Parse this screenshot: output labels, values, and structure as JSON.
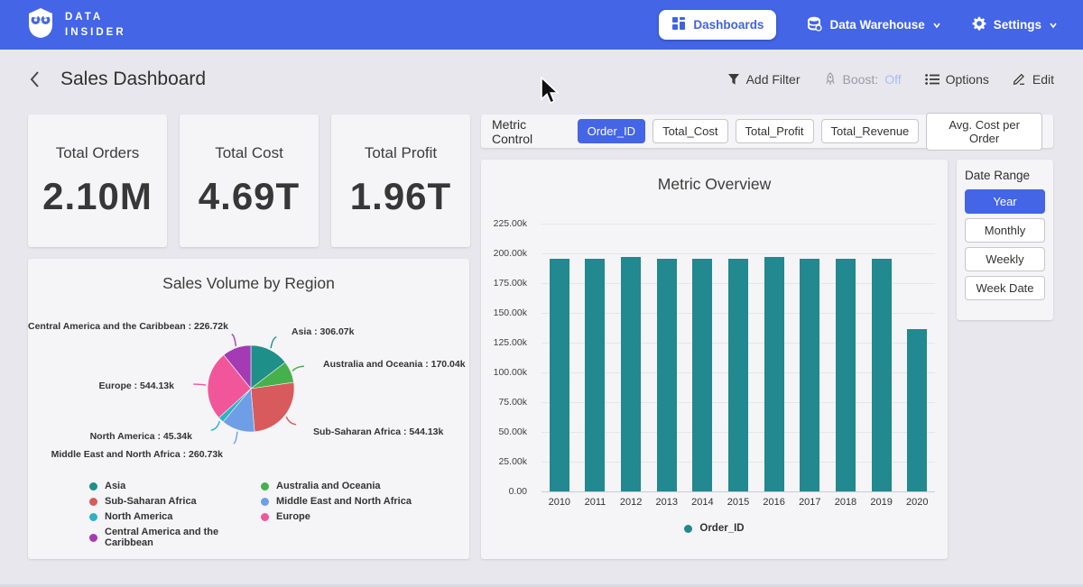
{
  "nav": {
    "brand_line1": "DATA",
    "brand_line2": "INSIDER",
    "items": [
      {
        "label": "Dashboards",
        "icon": "dashboard-grid-icon",
        "active": true
      },
      {
        "label": "Data Warehouse",
        "icon": "database-icon",
        "has_dropdown": true
      },
      {
        "label": "Settings",
        "icon": "gear-icon",
        "has_dropdown": true
      }
    ]
  },
  "header": {
    "title": "Sales Dashboard",
    "actions": {
      "add_filter": "Add Filter",
      "boost_label": "Boost:",
      "boost_value": "Off",
      "options": "Options",
      "edit": "Edit"
    }
  },
  "kpis": [
    {
      "label": "Total Orders",
      "value": "2.10M"
    },
    {
      "label": "Total Cost",
      "value": "4.69T"
    },
    {
      "label": "Total Profit",
      "value": "1.96T"
    }
  ],
  "metric_control": {
    "label": "Metric Control",
    "options": [
      {
        "label": "Order_ID",
        "selected": true
      },
      {
        "label": "Total_Cost",
        "selected": false
      },
      {
        "label": "Total_Profit",
        "selected": false
      },
      {
        "label": "Total_Revenue",
        "selected": false
      },
      {
        "label": "Avg. Cost per Order",
        "selected": false
      }
    ]
  },
  "date_range": {
    "label": "Date Range",
    "options": [
      {
        "label": "Year",
        "selected": true
      },
      {
        "label": "Monthly",
        "selected": false
      },
      {
        "label": "Weekly",
        "selected": false
      },
      {
        "label": "Week Date",
        "selected": false
      }
    ]
  },
  "colors": {
    "nav_blue": "#4365e6",
    "accent_selected": "#4365e6",
    "bar_teal": "#21898f",
    "page_bg": "#e8e7ed",
    "card_bg": "#f5f4f6",
    "boost_off": "#a9bdf2"
  },
  "chart_data": [
    {
      "type": "pie",
      "title": "Sales Volume by Region",
      "legend_position": "bottom",
      "segments": [
        {
          "name": "Asia",
          "value": 306070,
          "display": "Asia : 306.07k",
          "color": "#1f8f8a"
        },
        {
          "name": "Australia and Oceania",
          "value": 170040,
          "display": "Australia and Oceania : 170.04k",
          "color": "#46b14c"
        },
        {
          "name": "Sub-Saharan Africa",
          "value": 544130,
          "display": "Sub-Saharan Africa : 544.13k",
          "color": "#d95a5c"
        },
        {
          "name": "Middle East and North Africa",
          "value": 260730,
          "display": "Middle East and North Africa : 260.73k",
          "color": "#6e9ee6"
        },
        {
          "name": "North America",
          "value": 45340,
          "display": "North America : 45.34k",
          "color": "#2ab4c4"
        },
        {
          "name": "Europe",
          "value": 544130,
          "display": "Europe : 544.13k",
          "color": "#f2569a"
        },
        {
          "name": "Central America and the Caribbean",
          "value": 226720,
          "display": "Central America and the Caribbean : 226.72k",
          "color": "#a53ab5"
        }
      ]
    },
    {
      "type": "bar",
      "title": "Metric Overview",
      "categories": [
        "2010",
        "2011",
        "2012",
        "2013",
        "2014",
        "2015",
        "2016",
        "2017",
        "2018",
        "2019",
        "2020"
      ],
      "series": [
        {
          "name": "Order_ID",
          "color": "#21898f",
          "values": [
            195600,
            195500,
            196800,
            195400,
            195300,
            195400,
            196900,
            195600,
            195500,
            195600,
            136100
          ]
        }
      ],
      "ylim": [
        0,
        225000
      ],
      "ytick_step": 25000,
      "ytick_labels": [
        "0.00",
        "25.00k",
        "50.00k",
        "75.00k",
        "100.00k",
        "125.00k",
        "150.00k",
        "175.00k",
        "200.00k",
        "225.00k"
      ],
      "grid": true,
      "legend_position": "bottom"
    }
  ]
}
